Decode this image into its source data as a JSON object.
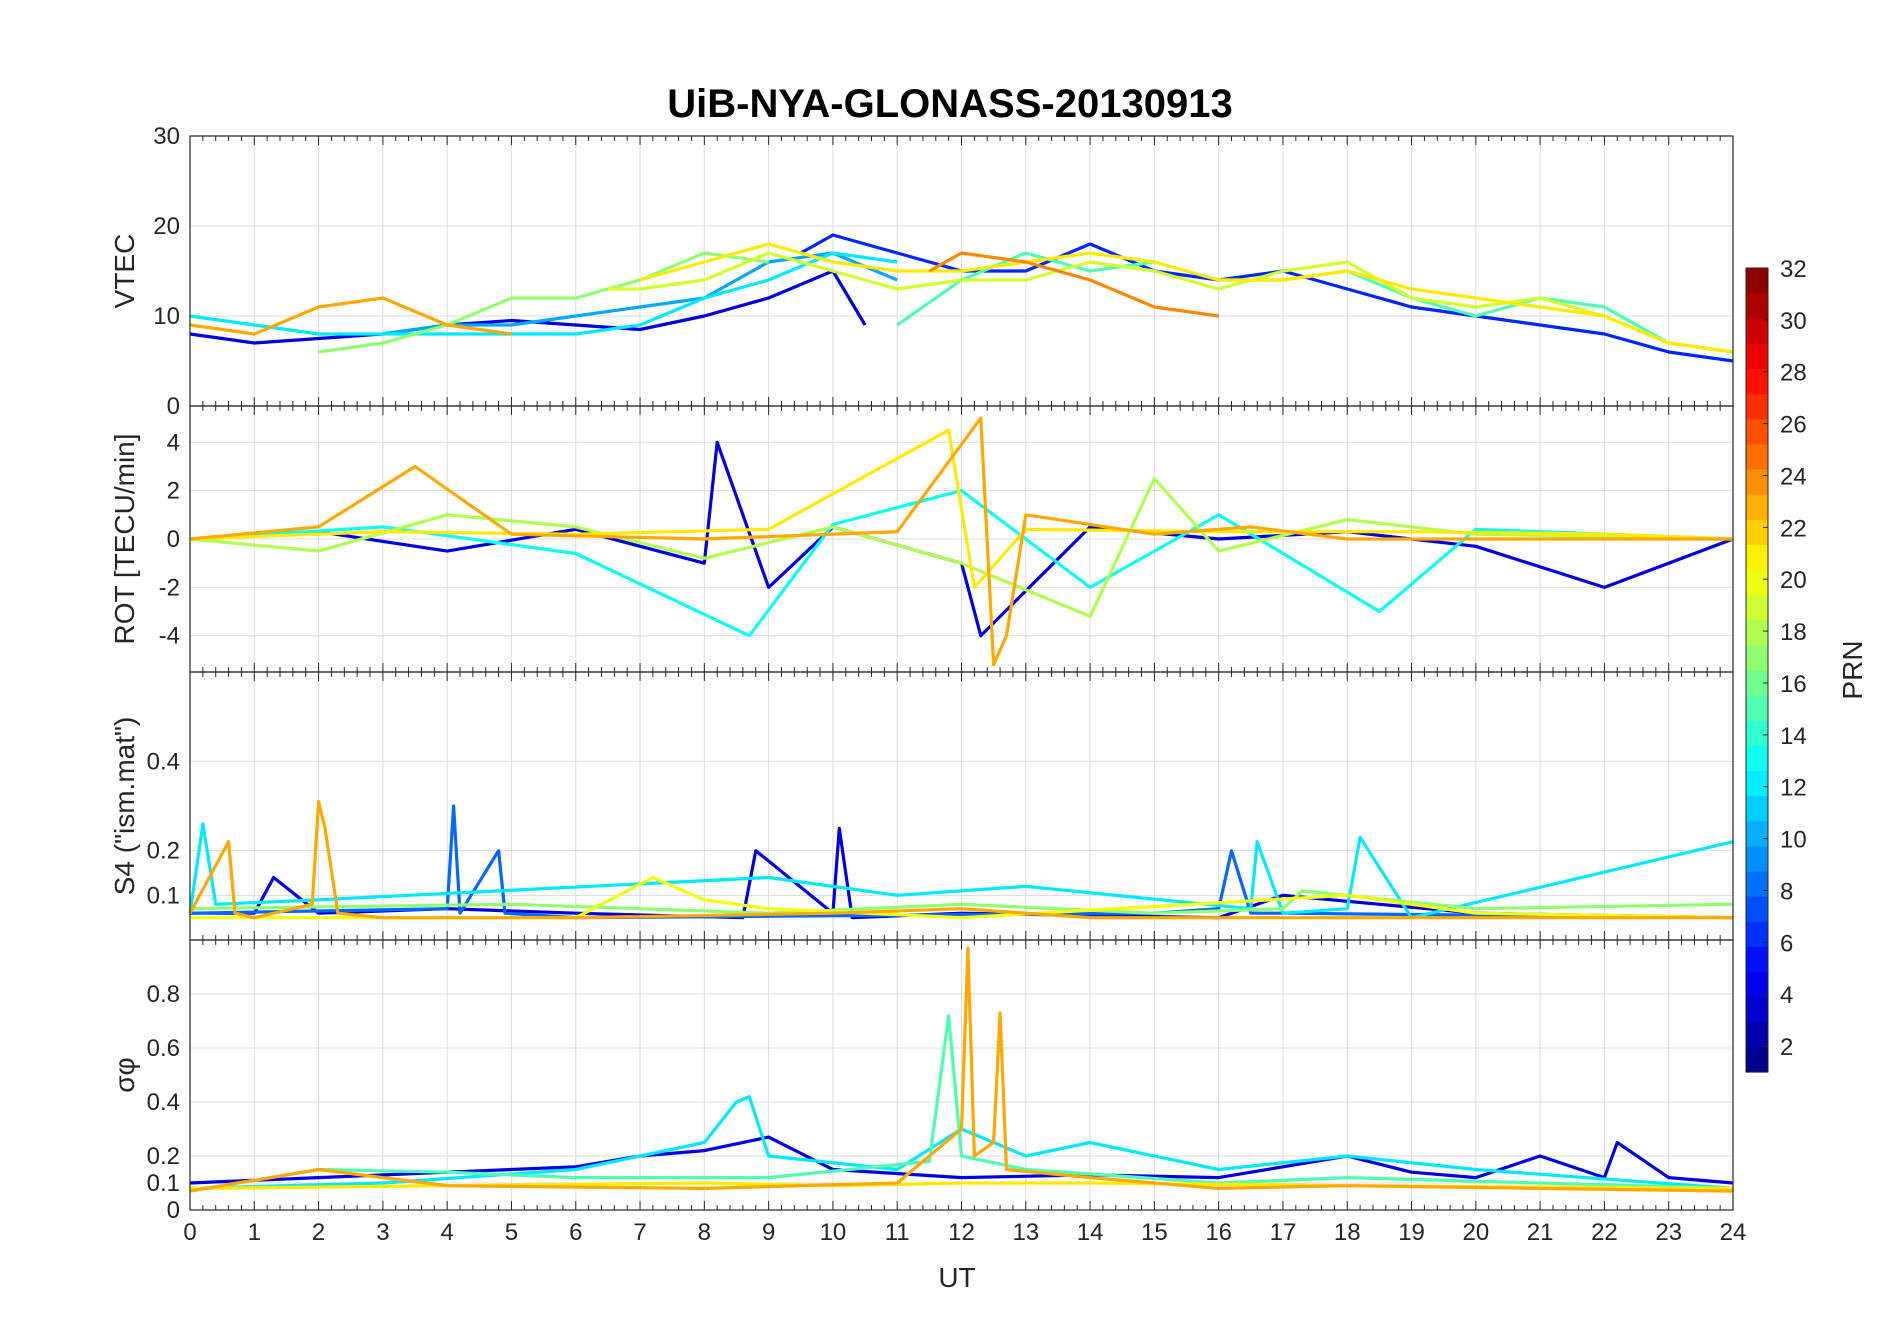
{
  "chart_data": {
    "type": "line",
    "title": "UiB-NYA-GLONASS-20130913",
    "xlabel": "UT",
    "xlim": [
      0,
      24
    ],
    "x_ticks": [
      "0",
      "1",
      "2",
      "3",
      "4",
      "5",
      "6",
      "7",
      "8",
      "9",
      "10",
      "11",
      "12",
      "13",
      "14",
      "15",
      "16",
      "17",
      "18",
      "19",
      "20",
      "21",
      "22",
      "23",
      "24"
    ],
    "grid": true,
    "colormap": "jet",
    "colorbar": {
      "label": "PRN",
      "range": [
        1,
        32
      ],
      "ticks": [
        "2",
        "4",
        "6",
        "8",
        "10",
        "12",
        "14",
        "16",
        "18",
        "20",
        "22",
        "24",
        "26",
        "28",
        "30",
        "32"
      ],
      "placement": "right"
    },
    "panels": [
      {
        "ylabel": "VTEC",
        "ylim": [
          0,
          30
        ],
        "y_ticks": [
          "0",
          "10",
          "20",
          "30"
        ],
        "series": [
          {
            "prn": 4,
            "x": [
              0,
              1,
              2,
              3,
              4,
              5,
              6,
              7,
              8,
              9,
              10,
              10.5
            ],
            "y": [
              8,
              7,
              7.5,
              8,
              9,
              9.5,
              9,
              8.5,
              10,
              12,
              15,
              9
            ]
          },
          {
            "prn": 6,
            "x": [
              9.5,
              10,
              11,
              12,
              13,
              14,
              15,
              16,
              17,
              18,
              19,
              20,
              21,
              22,
              23,
              24
            ],
            "y": [
              17,
              19,
              17,
              15,
              15,
              18,
              15,
              14,
              15,
              13,
              11,
              10,
              9,
              8,
              6,
              5
            ]
          },
          {
            "prn": 10,
            "x": [
              3,
              4,
              5,
              6,
              7,
              8,
              9,
              10,
              11
            ],
            "y": [
              8,
              9,
              9,
              10,
              11,
              12,
              16,
              17,
              14
            ]
          },
          {
            "prn": 12,
            "x": [
              0,
              1,
              2,
              3,
              4,
              5,
              6,
              7,
              8,
              9,
              10,
              11
            ],
            "y": [
              10,
              9,
              8,
              8,
              8,
              8,
              8,
              9,
              12,
              14,
              17,
              16
            ]
          },
          {
            "prn": 15,
            "x": [
              11,
              12,
              13,
              14,
              15,
              16,
              17,
              18,
              19,
              20,
              21,
              22,
              23,
              24
            ],
            "y": [
              9,
              14,
              17,
              15,
              16,
              14,
              14,
              15,
              12,
              10,
              12,
              11,
              7,
              6
            ]
          },
          {
            "prn": 17,
            "x": [
              2,
              3,
              4,
              5,
              6,
              7,
              8,
              9
            ],
            "y": [
              6,
              7,
              9,
              12,
              12,
              14,
              17,
              16
            ]
          },
          {
            "prn": 19,
            "x": [
              6.5,
              7,
              8,
              9,
              10,
              11,
              12,
              13,
              14,
              15,
              16,
              17,
              18,
              19,
              20,
              21,
              22,
              23,
              24
            ],
            "y": [
              13,
              13,
              14,
              17,
              15,
              13,
              14,
              14,
              16,
              15,
              13,
              15,
              16,
              12,
              11,
              12,
              10,
              7,
              6
            ]
          },
          {
            "prn": 21,
            "x": [
              7,
              8,
              9,
              10,
              11,
              12,
              13,
              14,
              15,
              16,
              17,
              18,
              19,
              20,
              21,
              22,
              23,
              24
            ],
            "y": [
              14,
              16,
              18,
              16,
              15,
              15,
              16,
              17,
              16,
              14,
              14,
              15,
              13,
              12,
              11,
              10,
              7,
              6
            ]
          },
          {
            "prn": 23,
            "x": [
              0,
              1,
              2,
              3,
              4,
              5
            ],
            "y": [
              9,
              8,
              11,
              12,
              9,
              8
            ]
          },
          {
            "prn": 24,
            "x": [
              11.5,
              12,
              13,
              14,
              15,
              16
            ],
            "y": [
              15,
              17,
              16,
              14,
              11,
              10
            ]
          }
        ]
      },
      {
        "ylabel": "ROT [TECU/min]",
        "ylim": [
          -5.5,
          5.5
        ],
        "y_ticks": [
          "-4",
          "-2",
          "0",
          "2",
          "4"
        ],
        "series": [
          {
            "prn": 4,
            "x": [
              0,
              2,
              4,
              6,
              8,
              8.2,
              9,
              10,
              12,
              12.3,
              14,
              16,
              18,
              20,
              22,
              24
            ],
            "y": [
              0,
              0.3,
              -0.5,
              0.4,
              -1,
              4,
              -2,
              0.5,
              -1,
              -4,
              0.5,
              0,
              0.3,
              -0.3,
              -2,
              0
            ]
          },
          {
            "prn": 13,
            "x": [
              0,
              3,
              6,
              8.7,
              10,
              12,
              14,
              16,
              18.5,
              20,
              24
            ],
            "y": [
              0,
              0.5,
              -0.6,
              -4,
              0.6,
              2,
              -2,
              1,
              -3,
              0.4,
              0
            ]
          },
          {
            "prn": 18,
            "x": [
              0,
              2,
              4,
              6,
              8,
              10,
              12,
              14,
              15,
              16,
              18,
              20,
              24
            ],
            "y": [
              0,
              -0.5,
              1,
              0.5,
              -0.8,
              0.5,
              -1,
              -3.2,
              2.5,
              -0.5,
              0.8,
              0.2,
              0
            ]
          },
          {
            "prn": 21,
            "x": [
              0,
              3,
              6,
              9,
              11.8,
              12.2,
              13,
              16,
              19,
              22,
              24
            ],
            "y": [
              0,
              0.3,
              0.2,
              0.4,
              4.5,
              -2,
              0.4,
              0.3,
              0.3,
              0.2,
              0
            ]
          },
          {
            "prn": 23,
            "x": [
              0,
              2,
              3.5,
              5,
              8,
              11,
              12.3,
              12.5,
              12.7,
              13,
              15,
              16.5,
              18,
              24
            ],
            "y": [
              0,
              0.5,
              3,
              0.2,
              0,
              0.3,
              5,
              -5.2,
              -4,
              1,
              0.2,
              0.5,
              0,
              0
            ]
          }
        ]
      },
      {
        "ylabel": "S4 (\"ism.mat\")",
        "ylim": [
          0,
          0.6
        ],
        "y_ticks": [
          "0.1",
          "0.2",
          "0.4"
        ],
        "series": [
          {
            "prn": 4,
            "x": [
              0,
              1,
              1.3,
              2,
              4,
              6,
              8.6,
              8.8,
              10,
              10.1,
              10.3,
              12,
              16,
              17,
              20,
              24
            ],
            "y": [
              0.06,
              0.06,
              0.14,
              0.06,
              0.07,
              0.06,
              0.05,
              0.2,
              0.06,
              0.25,
              0.05,
              0.06,
              0.05,
              0.1,
              0.06,
              0.05
            ]
          },
          {
            "prn": 8,
            "x": [
              0,
              4,
              4.1,
              4.2,
              4.8,
              4.9,
              6,
              15,
              16,
              16.2,
              16.5,
              17,
              24
            ],
            "y": [
              0.06,
              0.07,
              0.3,
              0.06,
              0.2,
              0.06,
              0.05,
              0.06,
              0.07,
              0.2,
              0.06,
              0.06,
              0.05
            ]
          },
          {
            "prn": 12,
            "x": [
              0,
              0.2,
              0.4,
              2,
              9,
              11,
              13,
              16.5,
              16.6,
              17,
              18,
              18.2,
              19,
              24
            ],
            "y": [
              0.06,
              0.26,
              0.08,
              0.09,
              0.14,
              0.1,
              0.12,
              0.07,
              0.22,
              0.06,
              0.07,
              0.23,
              0.05,
              0.22
            ]
          },
          {
            "prn": 17,
            "x": [
              0,
              5,
              7,
              9,
              12,
              15,
              17,
              17.3,
              20,
              24
            ],
            "y": [
              0.07,
              0.08,
              0.07,
              0.06,
              0.08,
              0.06,
              0.07,
              0.11,
              0.07,
              0.08
            ]
          },
          {
            "prn": 20,
            "x": [
              0,
              6,
              7.2,
              8,
              9,
              12,
              18,
              20,
              24
            ],
            "y": [
              0.05,
              0.05,
              0.14,
              0.09,
              0.07,
              0.05,
              0.1,
              0.06,
              0.05
            ]
          },
          {
            "prn": 23,
            "x": [
              0,
              0.6,
              0.7,
              1,
              1.9,
              2,
              2.1,
              2.3,
              3,
              6,
              10,
              12,
              14,
              16,
              24
            ],
            "y": [
              0.06,
              0.22,
              0.06,
              0.05,
              0.08,
              0.31,
              0.25,
              0.06,
              0.05,
              0.05,
              0.06,
              0.07,
              0.05,
              0.05,
              0.05
            ]
          }
        ]
      },
      {
        "ylabel": "σφ",
        "ylim": [
          0,
          1
        ],
        "y_ticks": [
          "0",
          "0.1",
          "0.2",
          "0.4",
          "0.6",
          "0.8"
        ],
        "series": [
          {
            "prn": 4,
            "x": [
              0,
              2,
              4,
              6,
              7,
              8,
              9,
              10,
              12,
              14,
              16,
              18,
              19,
              20,
              21,
              22,
              22.2,
              23,
              24
            ],
            "y": [
              0.1,
              0.12,
              0.14,
              0.16,
              0.2,
              0.22,
              0.27,
              0.15,
              0.12,
              0.13,
              0.12,
              0.2,
              0.14,
              0.12,
              0.2,
              0.12,
              0.25,
              0.12,
              0.1
            ]
          },
          {
            "prn": 12,
            "x": [
              0,
              3,
              6,
              8,
              8.5,
              8.7,
              9,
              11,
              12,
              13,
              14,
              16,
              18,
              20,
              24
            ],
            "y": [
              0.08,
              0.1,
              0.15,
              0.25,
              0.4,
              0.42,
              0.2,
              0.15,
              0.3,
              0.2,
              0.25,
              0.15,
              0.2,
              0.15,
              0.08
            ]
          },
          {
            "prn": 15,
            "x": [
              0,
              2,
              4,
              6,
              9,
              11.5,
              11.8,
              12,
              13,
              16,
              18,
              24
            ],
            "y": [
              0.07,
              0.15,
              0.14,
              0.12,
              0.12,
              0.18,
              0.72,
              0.2,
              0.15,
              0.1,
              0.12,
              0.08
            ]
          },
          {
            "prn": 21,
            "x": [
              0,
              4,
              8,
              10,
              12,
              14,
              18,
              24
            ],
            "y": [
              0.08,
              0.09,
              0.1,
              0.09,
              0.1,
              0.1,
              0.09,
              0.08
            ]
          },
          {
            "prn": 23,
            "x": [
              0,
              2,
              4,
              8,
              11,
              12,
              12.1,
              12.2,
              12.5,
              12.6,
              12.7,
              14,
              16,
              18,
              24
            ],
            "y": [
              0.07,
              0.15,
              0.09,
              0.08,
              0.1,
              0.3,
              0.97,
              0.2,
              0.25,
              0.73,
              0.15,
              0.12,
              0.08,
              0.09,
              0.07
            ]
          }
        ]
      }
    ]
  }
}
